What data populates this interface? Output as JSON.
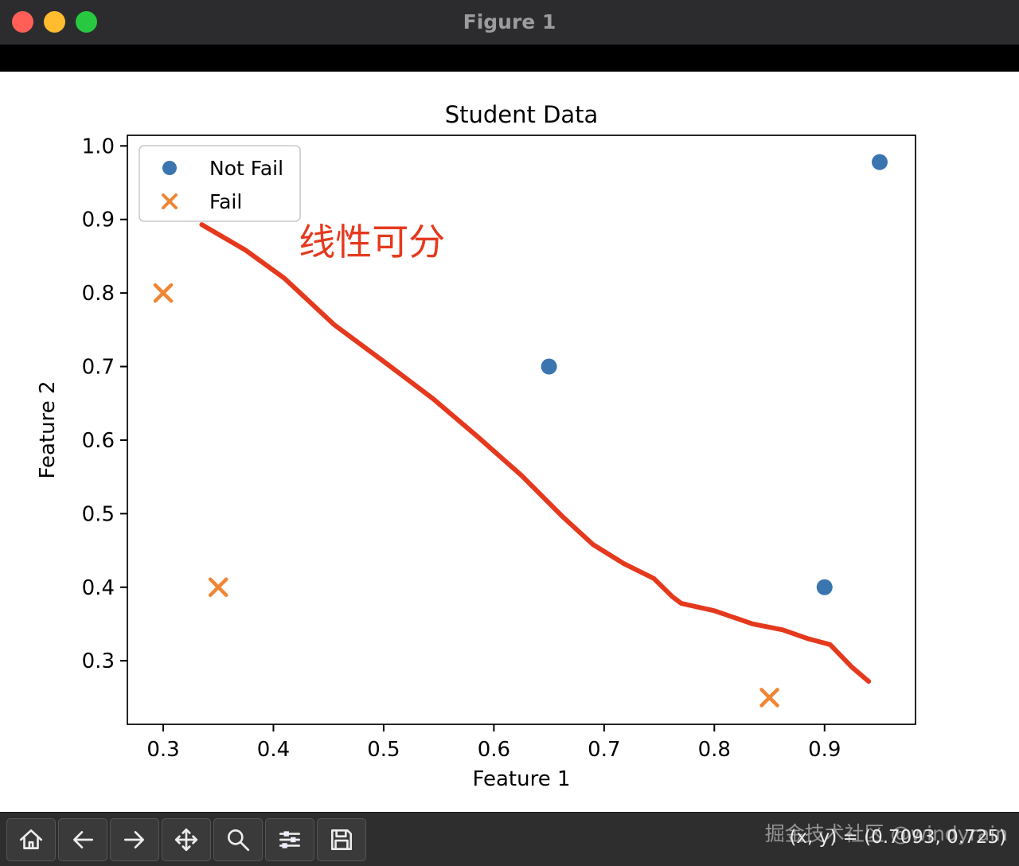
{
  "window": {
    "title": "Figure 1",
    "titlebar_color": "#2c2c2e",
    "traffic_lights": [
      {
        "name": "close",
        "color": "#ff5f57"
      },
      {
        "name": "minimize",
        "color": "#febc2e"
      },
      {
        "name": "zoom",
        "color": "#28c840"
      }
    ]
  },
  "chart_data": {
    "type": "scatter",
    "title": "Student Data",
    "xlabel": "Feature 1",
    "ylabel": "Feature 2",
    "xlim": [
      0.2675,
      0.9825
    ],
    "ylim": [
      0.2136,
      1.0144
    ],
    "xticks": [
      0.3,
      0.4,
      0.5,
      0.6,
      0.7,
      0.8,
      0.9
    ],
    "yticks": [
      0.3,
      0.4,
      0.5,
      0.6,
      0.7,
      0.8,
      0.9,
      1.0
    ],
    "grid": false,
    "legend": {
      "position": "upper left",
      "entries": [
        "Not Fail",
        "Fail"
      ]
    },
    "series": [
      {
        "name": "Not Fail",
        "marker": "circle",
        "color": "#3b75af",
        "points": [
          [
            0.65,
            0.7
          ],
          [
            0.9,
            0.4
          ],
          [
            0.95,
            0.978
          ]
        ]
      },
      {
        "name": "Fail",
        "marker": "x",
        "color": "#ef8636",
        "points": [
          [
            0.3,
            0.8
          ],
          [
            0.35,
            0.4
          ],
          [
            0.85,
            0.25
          ]
        ]
      }
    ],
    "annotation": {
      "text": "线性可分",
      "color": "#e5391e",
      "x": 0.423,
      "y": 0.852,
      "font_size": 46
    },
    "curve": {
      "color": "#e5391e",
      "width": 6,
      "points": [
        [
          0.335,
          0.893
        ],
        [
          0.375,
          0.858
        ],
        [
          0.41,
          0.82
        ],
        [
          0.455,
          0.757
        ],
        [
          0.5,
          0.707
        ],
        [
          0.545,
          0.656
        ],
        [
          0.585,
          0.605
        ],
        [
          0.625,
          0.552
        ],
        [
          0.663,
          0.495
        ],
        [
          0.69,
          0.458
        ],
        [
          0.718,
          0.432
        ],
        [
          0.745,
          0.412
        ],
        [
          0.762,
          0.387
        ],
        [
          0.77,
          0.378
        ],
        [
          0.8,
          0.368
        ],
        [
          0.835,
          0.35
        ],
        [
          0.862,
          0.342
        ],
        [
          0.885,
          0.33
        ],
        [
          0.905,
          0.322
        ],
        [
          0.925,
          0.291
        ],
        [
          0.94,
          0.272
        ]
      ]
    }
  },
  "toolbar": {
    "buttons": [
      {
        "icon": "home-icon"
      },
      {
        "icon": "back-icon"
      },
      {
        "icon": "forward-icon"
      },
      {
        "icon": "pan-icon"
      },
      {
        "icon": "zoom-icon"
      },
      {
        "icon": "subplots-icon"
      },
      {
        "icon": "save-icon"
      }
    ],
    "status": "(x, y) = (0.7093, 0.725)"
  },
  "watermark": "掘金技术社区 @windyrain"
}
